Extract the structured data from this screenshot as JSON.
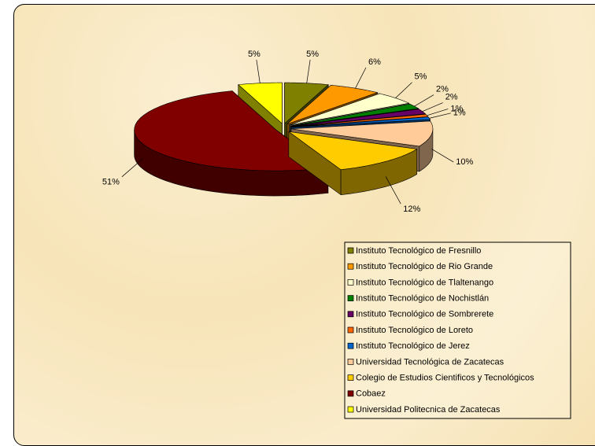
{
  "chart_data": {
    "type": "pie",
    "categories": [
      "Instituto Tecnológico de Fresnillo",
      "Instituto Tecnológico de Rio Grande",
      "Instituto Tecnológico de Tlaltenango",
      "Instituto Tecnológico de Nochistlán",
      "Instituto Tecnológico de Sombrerete",
      "Instituto Tecnológico de Loreto",
      "Instituto Tecnológico de Jerez",
      "Universidad Tecnológica de Zacatecas",
      "Colegio de Estudios Cientificos y Tecnológicos",
      "Cobaez",
      "Universidad Politecnica de Zacatecas"
    ],
    "values": [
      5,
      6,
      5,
      2,
      2,
      1,
      1,
      10,
      12,
      51,
      5
    ],
    "value_labels": [
      "5%",
      "6%",
      "5%",
      "2%",
      "2%",
      "1%",
      "1%",
      "10%",
      "12%",
      "51%",
      "5%"
    ],
    "colors": [
      "#808000",
      "#ff9900",
      "#ffffcc",
      "#008000",
      "#660066",
      "#ff6600",
      "#0066cc",
      "#ffcc99",
      "#ffcc00",
      "#800000",
      "#ffff00"
    ]
  }
}
